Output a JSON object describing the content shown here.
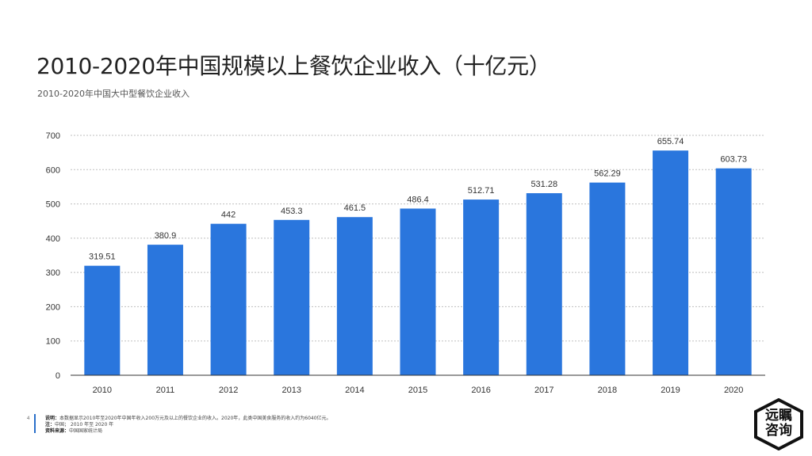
{
  "title": "2010-2020年中国规模以上餐饮企业收入（十亿元）",
  "subtitle": "2010-2020年中国大中型餐饮企业收入",
  "page_number": "4",
  "notes": {
    "desc_label": "说明：",
    "desc_text": "本数据显示2010年至2020年中国年收入200万元及以上的餐饮企业的收入。2020年，此类中国美食服务的收入约为6040亿元。",
    "note_label": "注：",
    "note_text": "中国； 2010 年至 2020 年",
    "source_label": "资料来源：",
    "source_text": "中国国家统计局"
  },
  "logo": {
    "line1": "远瞩",
    "line2": "咨询"
  },
  "colors": {
    "bar": "#2a76dd",
    "grid": "#bfbfbf",
    "axis": "#333333"
  },
  "chart_data": {
    "type": "bar",
    "categories": [
      "2010",
      "2011",
      "2012",
      "2013",
      "2014",
      "2015",
      "2016",
      "2017",
      "2018",
      "2019",
      "2020"
    ],
    "values": [
      319.51,
      380.9,
      442,
      453.3,
      461.5,
      486.4,
      512.71,
      531.28,
      562.29,
      655.74,
      603.73
    ],
    "labels": [
      "319.51",
      "380.9",
      "442",
      "453.3",
      "461.5",
      "486.4",
      "512.71",
      "531.28",
      "562.29",
      "655.74",
      "603.73"
    ],
    "yticks": [
      0,
      100,
      200,
      300,
      400,
      500,
      600,
      700
    ],
    "ylim": [
      0,
      700
    ],
    "grid": true,
    "legend": "none"
  }
}
